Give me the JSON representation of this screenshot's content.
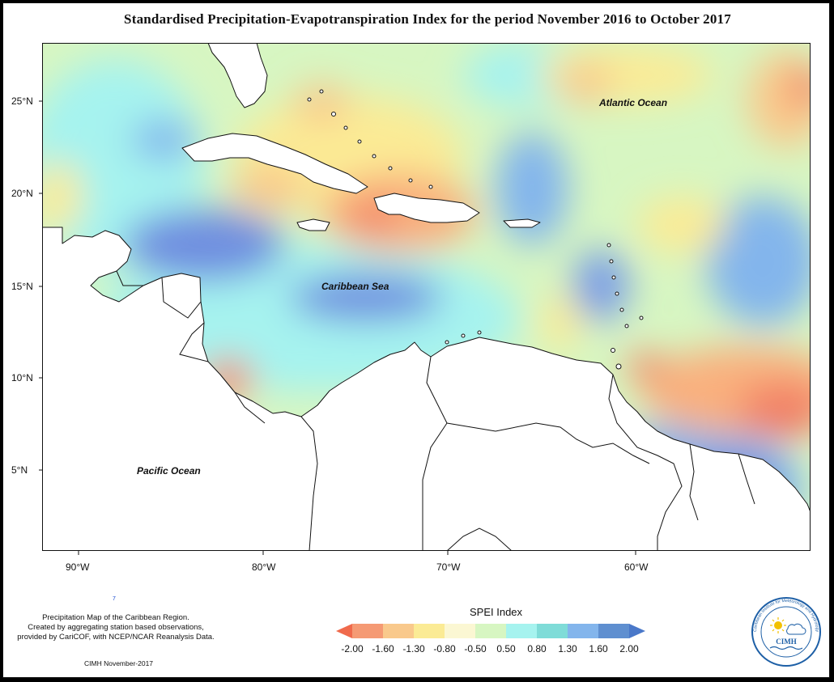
{
  "title": "Standardised Precipitation-Evapotranspiration Index for the period November 2016 to October 2017",
  "map": {
    "labels": {
      "atlantic": "Atlantic Ocean",
      "caribbean": "Caribbean Sea",
      "pacific": "Pacific Ocean"
    },
    "lat_ticks": [
      "25°N",
      "20°N",
      "15°N",
      "10°N",
      "5°N"
    ],
    "lon_ticks": [
      "90°W",
      "80°W",
      "70°W",
      "60°W"
    ]
  },
  "legend": {
    "title": "SPEI Index",
    "labels": [
      "-2.00",
      "-1.60",
      "-1.30",
      "-0.80",
      "-0.50",
      "0.50",
      "0.80",
      "1.30",
      "1.60",
      "2.00"
    ],
    "colors": [
      "#f06a4c",
      "#f59a74",
      "#f9c98c",
      "#fbeb95",
      "#fbf7d3",
      "#d7f6c2",
      "#a6f3ef",
      "#7fdcd8",
      "#83b5ec",
      "#5f8fd0",
      "#4a78c9"
    ]
  },
  "caption": {
    "line1": "Precipitation Map of the Caribbean Region.",
    "line2": "Created by aggregating station based observations,",
    "line3": "provided by CariCOF, with NCEP/NCAR Reanalysis Data."
  },
  "credit": "CIMH November-2017",
  "stray_mark": "7",
  "logo": {
    "name": "CIMH",
    "ring_text": "Caribbean Institute for Meteorology and Hydrology"
  }
}
